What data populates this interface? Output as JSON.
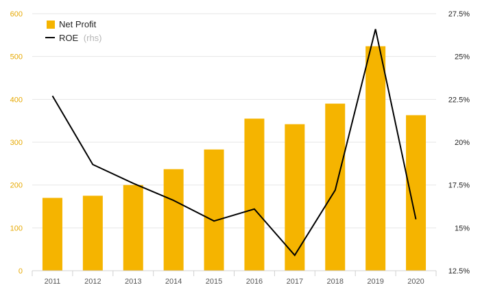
{
  "chart_data": {
    "type": "bar",
    "categories": [
      "2011",
      "2012",
      "2013",
      "2014",
      "2015",
      "2016",
      "2017",
      "2018",
      "2019",
      "2020"
    ],
    "series": [
      {
        "name": "Net Profit",
        "type": "bar",
        "axis": "left",
        "color": "#f5b400",
        "values": [
          170,
          175,
          200,
          237,
          283,
          355,
          342,
          390,
          524,
          363
        ]
      },
      {
        "name": "ROE",
        "name_suffix": "(rhs)",
        "type": "line",
        "axis": "right",
        "color": "#000000",
        "values": [
          22.7,
          18.7,
          17.6,
          16.6,
          15.4,
          16.1,
          13.4,
          17.2,
          26.6,
          15.5
        ]
      }
    ],
    "y_left": {
      "min": 0,
      "max": 600,
      "ticks": [
        "0",
        "100",
        "200",
        "300",
        "400",
        "500",
        "600"
      ]
    },
    "y_right": {
      "min": 12.5,
      "max": 27.5,
      "ticks": [
        "12.5%",
        "15%",
        "17.5%",
        "20%",
        "22.5%",
        "25%",
        "27.5%"
      ]
    },
    "grid": true,
    "legend_position": "top-left"
  }
}
